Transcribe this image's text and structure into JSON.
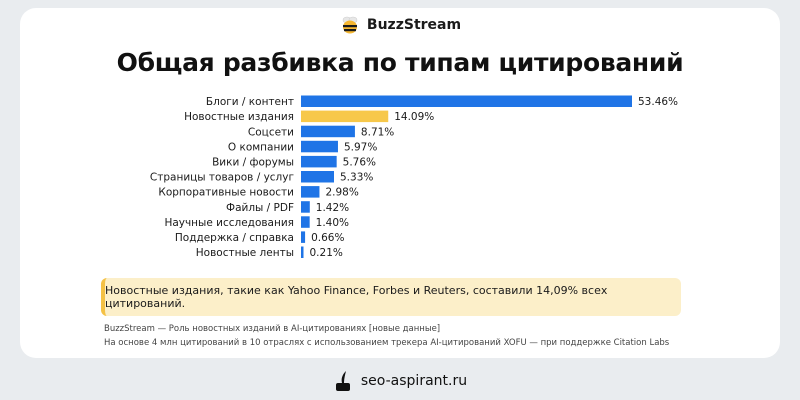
{
  "brand": {
    "name": "BuzzStream",
    "logo_icon": "bee-logo-icon"
  },
  "colors": {
    "primary_bar": "#1f74e6",
    "highlight_bar": "#f7c84a",
    "note_bg": "#fcefc9",
    "note_border": "#f4c145"
  },
  "chart_data": {
    "type": "bar",
    "orientation": "horizontal",
    "title": "Общая разбивка по типам цитирований",
    "categories": [
      "Блоги / контент",
      "Новостные издания",
      "Соцсети",
      "О компании",
      "Вики / форумы",
      "Страницы товаров / услуг",
      "Корпоративные новости",
      "Файлы / PDF",
      "Научные исследования",
      "Поддержка / справка",
      "Новостные ленты"
    ],
    "values": [
      53.46,
      14.09,
      8.71,
      5.97,
      5.76,
      5.33,
      2.98,
      1.42,
      1.4,
      0.66,
      0.21
    ],
    "value_labels": [
      "53.46%",
      "14.09%",
      "8.71%",
      "5.97%",
      "5.76%",
      "5.33%",
      "2.98%",
      "1.42%",
      "1.40%",
      "0.66%",
      "0.21%"
    ],
    "highlight_index": 1,
    "xlim": [
      0,
      53.46
    ],
    "grid": false,
    "legend": "none"
  },
  "note": {
    "text": "Новостные издания, такие как Yahoo Finance, Forbes и Reuters, составили 14,09% всех цитирований."
  },
  "footer": {
    "line1": "BuzzStream — Роль новостных изданий в AI-цитированиях [новые данные]",
    "line2": "На основе 4 млн цитирований в 10 отраслях с использованием трекера AI-цитирований XOFU — при поддержке Citation Labs"
  },
  "watermark": {
    "text": "seo-aspirant.ru",
    "icon": "inkwell-quill-icon"
  }
}
